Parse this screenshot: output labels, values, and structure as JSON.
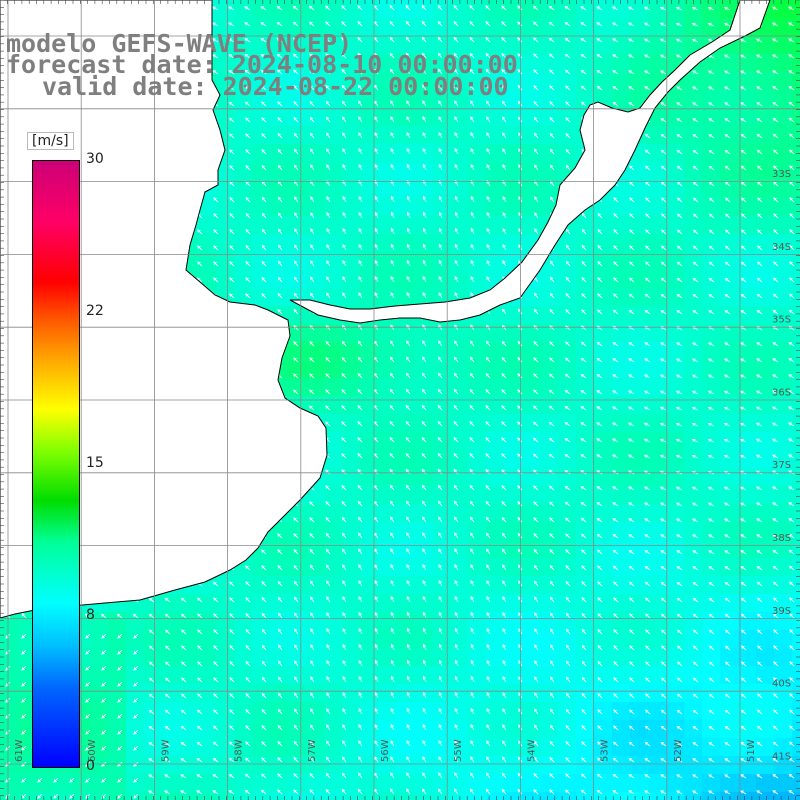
{
  "title": {
    "line1": "modelo GEFS-WAVE (NCEP)",
    "line2": "forecast date: 2024-08-10 00:00:00",
    "line3": "valid date: 2024-08-22 00:00:00"
  },
  "colorbar": {
    "unit": "[m/s]",
    "ticks": [
      "30",
      "22",
      "15",
      "8",
      "0"
    ],
    "range": [
      0,
      30
    ]
  },
  "map": {
    "lat_labels": [
      "33S",
      "34S",
      "35S",
      "36S",
      "37S",
      "38S",
      "39S",
      "40S",
      "41S"
    ],
    "lon_labels": [
      "61W",
      "60W",
      "59W",
      "58W",
      "57W",
      "56W",
      "55W",
      "54W",
      "53W",
      "52W",
      "51W"
    ],
    "colors": {
      "land": "#ffffff",
      "coast": "#000000",
      "grid": "#888888",
      "arrow": "#ffffff"
    }
  }
}
